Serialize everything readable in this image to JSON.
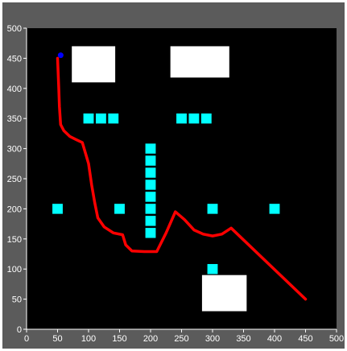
{
  "chart_data": {
    "type": "scatter",
    "title": "",
    "xlabel": "",
    "ylabel": "",
    "xlim": [
      0,
      500
    ],
    "ylim": [
      0,
      500
    ],
    "xticks": [
      0,
      50,
      100,
      150,
      200,
      250,
      300,
      350,
      400,
      450,
      500
    ],
    "yticks": [
      0,
      50,
      100,
      150,
      200,
      250,
      300,
      350,
      400,
      450,
      500
    ],
    "grid": false,
    "colors": {
      "figure_bg": "#5b5b5b",
      "plot_bg": "#000000",
      "path": "#ff0000",
      "cyan_obstacle": "#00ffff",
      "large_obstacle": "#ffffff",
      "start": "#0000ff",
      "text": "#ffffff"
    },
    "large_obstacles": [
      {
        "x1": 73,
        "x2": 143,
        "y1": 410,
        "y2": 470
      },
      {
        "x1": 232,
        "x2": 327,
        "y1": 418,
        "y2": 470
      },
      {
        "x1": 283,
        "x2": 355,
        "y1": 30,
        "y2": 90
      }
    ],
    "cyan_obstacles": [
      [
        100,
        350
      ],
      [
        120,
        350
      ],
      [
        140,
        350
      ],
      [
        250,
        350
      ],
      [
        270,
        350
      ],
      [
        290,
        350
      ],
      [
        200,
        300
      ],
      [
        200,
        280
      ],
      [
        200,
        260
      ],
      [
        200,
        240
      ],
      [
        200,
        220
      ],
      [
        200,
        200
      ],
      [
        200,
        180
      ],
      [
        200,
        160
      ],
      [
        50,
        200
      ],
      [
        150,
        200
      ],
      [
        300,
        200
      ],
      [
        400,
        200
      ],
      [
        300,
        100
      ]
    ],
    "start_point": [
      55,
      455
    ],
    "path": [
      [
        50,
        450
      ],
      [
        52,
        400
      ],
      [
        53,
        370
      ],
      [
        55,
        340
      ],
      [
        60,
        330
      ],
      [
        70,
        320
      ],
      [
        80,
        315
      ],
      [
        90,
        310
      ],
      [
        100,
        275
      ],
      [
        105,
        240
      ],
      [
        110,
        210
      ],
      [
        115,
        185
      ],
      [
        125,
        170
      ],
      [
        140,
        160
      ],
      [
        155,
        157
      ],
      [
        160,
        140
      ],
      [
        170,
        130
      ],
      [
        190,
        129
      ],
      [
        210,
        129
      ],
      [
        225,
        160
      ],
      [
        240,
        195
      ],
      [
        255,
        182
      ],
      [
        270,
        165
      ],
      [
        285,
        158
      ],
      [
        300,
        155
      ],
      [
        315,
        158
      ],
      [
        330,
        168
      ],
      [
        450,
        50
      ]
    ]
  }
}
